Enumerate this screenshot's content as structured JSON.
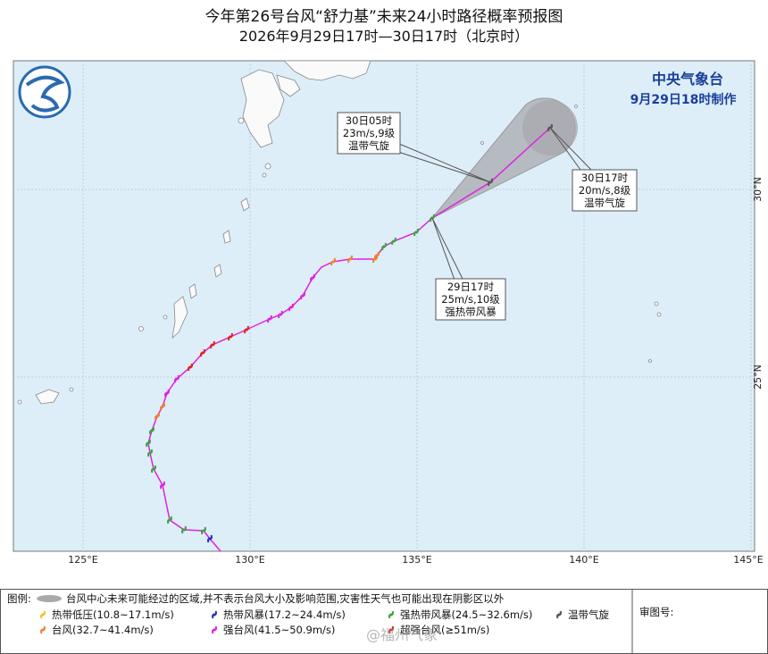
{
  "header": {
    "title": "今年第26号台风“舒力基”未来24小时路径概率预报图",
    "subtitle": "2026年9月29日17时—30日17时（北京时）"
  },
  "agency": {
    "name": "中央气象台",
    "made": "9月29日18时制作"
  },
  "callouts": [
    {
      "time": "30日05时",
      "wind": "23m/s,9级",
      "type": "温带气旋"
    },
    {
      "time": "30日17时",
      "wind": "20m/s,8级",
      "type": "温带气旋"
    },
    {
      "time": "29日17时",
      "wind": "25m/s,10级",
      "type": "强热带风暴"
    }
  ],
  "axis": {
    "lon": [
      "125°E",
      "130°E",
      "135°E",
      "140°E",
      "145°E"
    ],
    "lat": [
      "30°N",
      "25°N"
    ]
  },
  "legend": {
    "label": "图例:",
    "cone_note": "台风中心未来可能经过的区域,并不表示台风大小及影响范围,灾害性天气也可能出现在阴影区以外",
    "items": [
      "热带低压(10.8~17.1m/s)",
      "热带风暴(17.2~24.4m/s)",
      "强热带风暴(24.5~32.6m/s)",
      "温带气旋",
      "台风(32.7~41.4m/s)",
      "强台风(41.5~50.9m/s)",
      "超强台风(≥51m/s)"
    ]
  },
  "review": "审图号:",
  "watermark": "@福州气象"
}
